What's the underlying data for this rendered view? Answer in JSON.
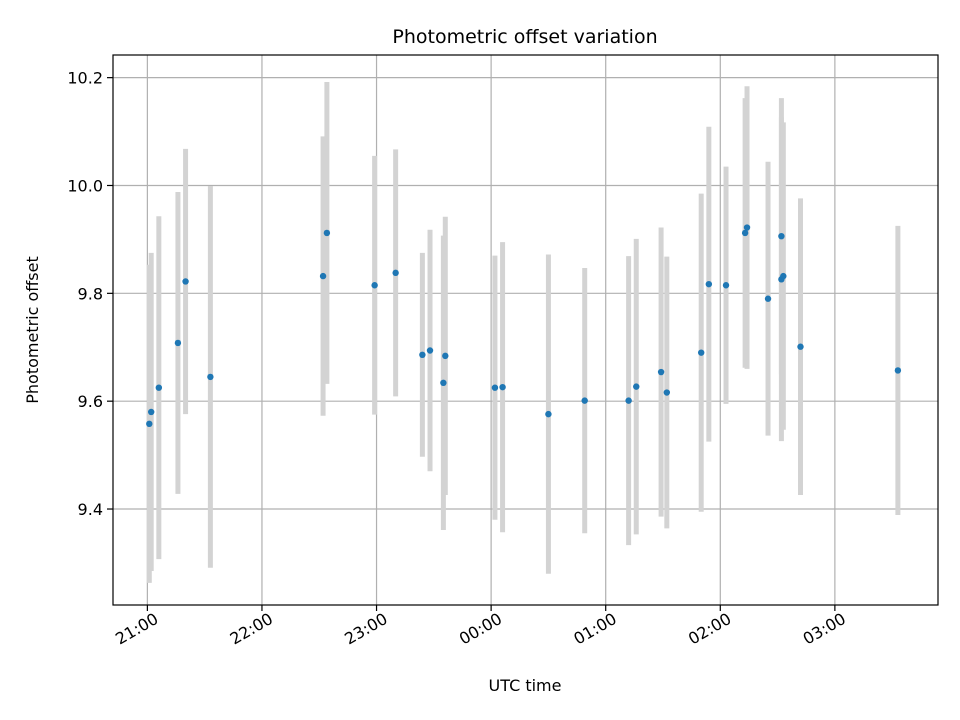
{
  "chart_data": {
    "type": "scatter",
    "title": "Photometric offset variation",
    "xlabel": "UTC time",
    "ylabel": "Photometric offset",
    "x_tick_labels": [
      "21:00",
      "22:00",
      "23:00",
      "00:00",
      "01:00",
      "02:00",
      "03:00"
    ],
    "x_tick_hours": [
      21,
      22,
      23,
      24,
      25,
      26,
      27
    ],
    "y_ticks": [
      9.4,
      9.6,
      9.8,
      10.0,
      10.2
    ],
    "y_tick_labels": [
      "9.4",
      "9.6",
      "9.8",
      "10.0",
      "10.2"
    ],
    "xlim_hours": [
      20.7,
      27.9
    ],
    "ylim": [
      9.222,
      10.242
    ],
    "grid": true,
    "point_color": "#1f77b4",
    "errorbar_color": "#d3d3d3",
    "points": [
      {
        "t": "21:01",
        "y": 9.558,
        "err": 0.295
      },
      {
        "t": "21:02",
        "y": 9.58,
        "err": 0.295
      },
      {
        "t": "21:06",
        "y": 9.625,
        "err": 0.318
      },
      {
        "t": "21:16",
        "y": 9.708,
        "err": 0.28
      },
      {
        "t": "21:20",
        "y": 9.822,
        "err": 0.246
      },
      {
        "t": "21:33",
        "y": 9.645,
        "err": 0.354
      },
      {
        "t": "22:32",
        "y": 9.832,
        "err": 0.259
      },
      {
        "t": "22:34",
        "y": 9.912,
        "err": 0.28
      },
      {
        "t": "22:59",
        "y": 9.815,
        "err": 0.24
      },
      {
        "t": "23:10",
        "y": 9.838,
        "err": 0.229
      },
      {
        "t": "23:24",
        "y": 9.686,
        "err": 0.189
      },
      {
        "t": "23:28",
        "y": 9.694,
        "err": 0.224
      },
      {
        "t": "23:35",
        "y": 9.634,
        "err": 0.273
      },
      {
        "t": "23:36",
        "y": 9.684,
        "err": 0.258
      },
      {
        "t": "00:02",
        "y": 9.625,
        "err": 0.245
      },
      {
        "t": "00:06",
        "y": 9.626,
        "err": 0.269
      },
      {
        "t": "00:30",
        "y": 9.576,
        "err": 0.296
      },
      {
        "t": "00:49",
        "y": 9.601,
        "err": 0.246
      },
      {
        "t": "01:12",
        "y": 9.601,
        "err": 0.268
      },
      {
        "t": "01:16",
        "y": 9.627,
        "err": 0.274
      },
      {
        "t": "01:29",
        "y": 9.654,
        "err": 0.268
      },
      {
        "t": "01:32",
        "y": 9.616,
        "err": 0.252
      },
      {
        "t": "01:50",
        "y": 9.69,
        "err": 0.295
      },
      {
        "t": "01:54",
        "y": 9.817,
        "err": 0.292
      },
      {
        "t": "02:03",
        "y": 9.815,
        "err": 0.22
      },
      {
        "t": "02:13",
        "y": 9.912,
        "err": 0.25
      },
      {
        "t": "02:14",
        "y": 9.922,
        "err": 0.262
      },
      {
        "t": "02:25",
        "y": 9.79,
        "err": 0.254
      },
      {
        "t": "02:32",
        "y": 9.906,
        "err": 0.256
      },
      {
        "t": "02:32",
        "y": 9.826,
        "err": 0.3
      },
      {
        "t": "02:33",
        "y": 9.832,
        "err": 0.285
      },
      {
        "t": "02:42",
        "y": 9.701,
        "err": 0.275
      },
      {
        "t": "03:33",
        "y": 9.657,
        "err": 0.268
      }
    ]
  }
}
